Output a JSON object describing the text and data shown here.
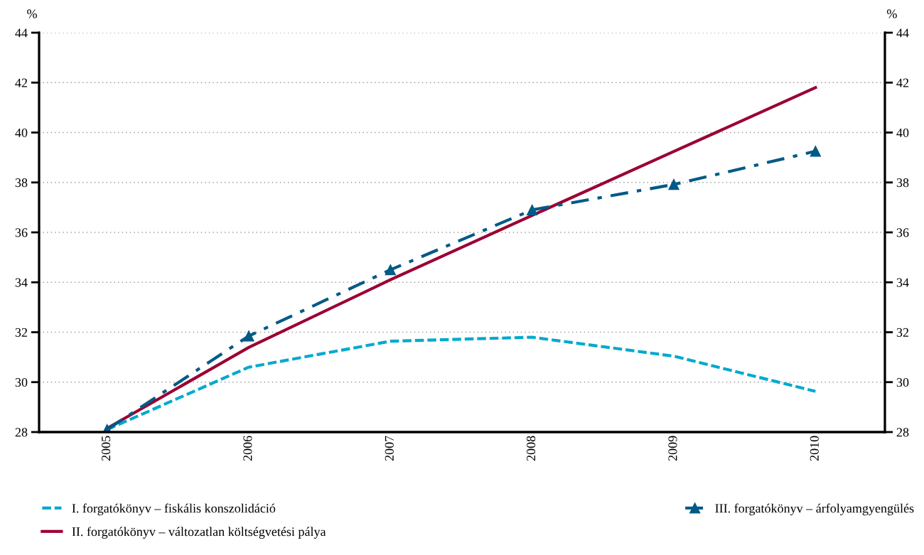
{
  "chart_data": {
    "type": "line",
    "categories": [
      "2005",
      "2006",
      "2007",
      "2008",
      "2009",
      "2010"
    ],
    "ylabel": "%",
    "y2label": "%",
    "ylim": [
      28,
      44
    ],
    "yticks": [
      28,
      30,
      32,
      34,
      36,
      38,
      40,
      42,
      44
    ],
    "y2lim": [
      28,
      44
    ],
    "y2ticks": [
      28,
      30,
      32,
      34,
      36,
      38,
      40,
      42,
      44
    ],
    "grid": "y",
    "legend": "bottom",
    "series": [
      {
        "name": "I. forgatókönyv – fiskális konszolidáció",
        "color": "#00a9ce",
        "line_style": "dashed",
        "marker": "none",
        "values": [
          28.1,
          30.6,
          31.64,
          31.8,
          31.04,
          29.63
        ]
      },
      {
        "name": "II. forgatókönyv – változatlan költségvetési pálya",
        "color": "#9b0032",
        "line_style": "solid",
        "marker": "none",
        "values": [
          28.15,
          31.39,
          34.1,
          36.68,
          39.24,
          41.8
        ]
      },
      {
        "name": "III. forgatókönyv – árfolyamgyengülés",
        "color": "#005a87",
        "line_style": "dashdot",
        "marker": "triangle",
        "values": [
          28.1,
          31.85,
          34.5,
          36.9,
          37.92,
          39.25
        ]
      }
    ]
  }
}
